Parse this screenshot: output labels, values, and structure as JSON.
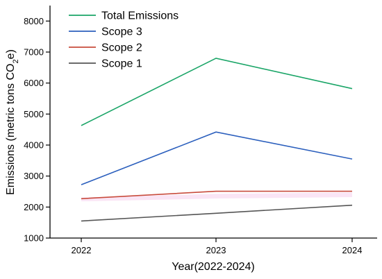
{
  "chart_data": {
    "type": "line",
    "x": [
      "2022",
      "2023",
      "2024"
    ],
    "xlabel": "Year(2022-2024)",
    "ylabel": {
      "prefix": "Emissions (metric tons CO",
      "subscript": "2",
      "suffix": "e)"
    },
    "ylim": [
      1000,
      8500
    ],
    "yticks": [
      1000,
      2000,
      3000,
      4000,
      5000,
      6000,
      7000,
      8000
    ],
    "grid": false,
    "legend_position": "top-left",
    "series": [
      {
        "name": "Total Emissions",
        "color": "#1aa567",
        "values": [
          4630,
          6800,
          5820
        ]
      },
      {
        "name": "Scope 3",
        "color": "#2b5fbd",
        "values": [
          2720,
          4420,
          3550
        ]
      },
      {
        "name": "Scope 2",
        "color": "#c84b3c",
        "values": [
          2270,
          2510,
          2510
        ]
      },
      {
        "name": "Scope 1",
        "color": "#555555",
        "values": [
          1550,
          1800,
          2060
        ]
      }
    ],
    "band": {
      "color": "#f3c6e8",
      "low": 2230,
      "high": 2560
    }
  }
}
